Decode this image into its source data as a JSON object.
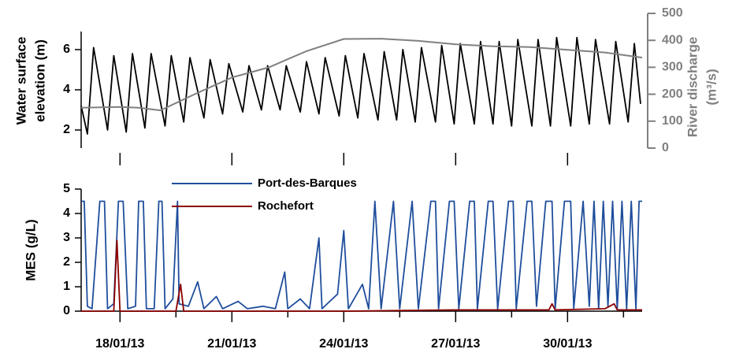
{
  "chart_data": [
    {
      "type": "line",
      "ylabel": [
        "Water surface",
        "elevation (m)"
      ],
      "y2label": [
        "River discharge",
        "(m³/s)"
      ],
      "xlim": [
        "2013-01-16T23:00",
        "2013-02-01T00:00"
      ],
      "ylim": [
        1.1,
        7.8
      ],
      "yticks": [
        2,
        4,
        6
      ],
      "y2lim": [
        0,
        500
      ],
      "y2ticks": [
        0,
        100,
        200,
        300,
        400,
        500
      ],
      "y2color": "#808080",
      "series": [
        {
          "color": "#000000",
          "x": [
            "2013-01-16T23:00",
            "2013-01-17T03:00",
            "2013-01-17T07:00",
            "2013-01-17T16:00",
            "2013-01-17T20:00",
            "2013-01-18T04:00",
            "2013-01-18T08:00",
            "2013-01-18T16:00",
            "2013-01-18T20:00",
            "2013-01-19T05:00",
            "2013-01-19T09:00",
            "2013-01-19T17:00",
            "2013-01-19T21:00",
            "2013-01-20T06:00",
            "2013-01-20T10:00",
            "2013-01-20T18:00",
            "2013-01-20T22:00",
            "2013-01-21T07:00",
            "2013-01-21T11:00",
            "2013-01-21T19:00",
            "2013-01-21T23:00",
            "2013-01-22T07:00",
            "2013-01-22T11:00",
            "2013-01-22T20:00",
            "2013-01-23T00:00",
            "2013-01-23T08:00",
            "2013-01-23T12:00",
            "2013-01-23T21:00",
            "2013-01-24T01:00",
            "2013-01-24T09:00",
            "2013-01-24T13:00",
            "2013-01-24T22:00",
            "2013-01-25T02:00",
            "2013-01-25T10:00",
            "2013-01-25T14:00",
            "2013-01-25T22:00",
            "2013-01-26T02:00",
            "2013-01-26T11:00",
            "2013-01-26T15:00",
            "2013-01-26T23:00",
            "2013-01-27T03:00",
            "2013-01-27T12:00",
            "2013-01-27T16:00",
            "2013-01-28T00:00",
            "2013-01-28T04:00",
            "2013-01-28T12:00",
            "2013-01-28T16:00",
            "2013-01-29T01:00",
            "2013-01-29T05:00",
            "2013-01-29T13:00",
            "2013-01-29T17:00",
            "2013-01-30T02:00",
            "2013-01-30T06:00",
            "2013-01-30T14:00",
            "2013-01-30T18:00",
            "2013-01-31T03:00",
            "2013-01-31T07:00",
            "2013-01-31T15:00",
            "2013-01-31T19:00",
            "2013-01-31T23:00"
          ],
          "values": [
            3.2,
            1.8,
            6.1,
            2.0,
            5.7,
            1.9,
            5.8,
            2.1,
            5.8,
            2.2,
            5.7,
            2.4,
            5.6,
            2.6,
            5.5,
            2.8,
            5.3,
            2.9,
            5.2,
            3.0,
            5.2,
            3.0,
            5.2,
            2.9,
            5.4,
            2.8,
            5.6,
            2.7,
            5.7,
            2.6,
            5.8,
            2.5,
            5.9,
            2.5,
            6.0,
            2.4,
            6.1,
            2.4,
            6.2,
            2.3,
            6.3,
            2.3,
            6.4,
            2.3,
            6.4,
            2.2,
            6.5,
            2.2,
            6.5,
            2.2,
            6.6,
            2.2,
            6.6,
            2.3,
            6.5,
            2.3,
            6.4,
            2.4,
            6.3,
            3.3
          ]
        },
        {
          "color": "#808080",
          "axis": "y2",
          "x": [
            "2013-01-16T23:00",
            "2013-01-18T00:00",
            "2013-01-18T12:00",
            "2013-01-19T02:00",
            "2013-01-20T00:00",
            "2013-01-21T00:00",
            "2013-01-22T00:00",
            "2013-01-22T12:00",
            "2013-01-23T00:00",
            "2013-01-24T00:00",
            "2013-01-25T00:00",
            "2013-01-26T00:00",
            "2013-01-27T00:00",
            "2013-01-28T00:00",
            "2013-01-29T00:00",
            "2013-01-30T00:00",
            "2013-01-31T00:00",
            "2013-02-01T00:00"
          ],
          "values": [
            150,
            153,
            150,
            140,
            200,
            262,
            300,
            330,
            360,
            405,
            406,
            398,
            385,
            378,
            375,
            365,
            355,
            336
          ]
        }
      ]
    },
    {
      "type": "line",
      "ylabel": [
        "MES (g/L)"
      ],
      "xlim": [
        "2013-01-16T23:00",
        "2013-02-01T00:00"
      ],
      "xticks": [
        {
          "value": "2013-01-18T00:00",
          "label": "18/01/13"
        },
        {
          "value": "2013-01-21T00:00",
          "label": "21/01/13"
        },
        {
          "value": "2013-01-24T00:00",
          "label": "24/01/13"
        },
        {
          "value": "2013-01-27T00:00",
          "label": "27/01/13"
        },
        {
          "value": "2013-01-30T00:00",
          "label": "30/01/13"
        }
      ],
      "xminorticks": [
        "2013-01-19T12:00",
        "2013-01-22T12:00",
        "2013-01-25T12:00",
        "2013-01-28T12:00",
        "2013-01-31T12:00"
      ],
      "ylim": [
        0,
        5
      ],
      "yticks": [
        0,
        1,
        2,
        3,
        4,
        5
      ],
      "legend": "upper left",
      "series": [
        {
          "name": "Port-des-Barques",
          "color": "#1f4e9c",
          "x": [
            "2013-01-16T23:00",
            "2013-01-17T01:00",
            "2013-01-17T03:00",
            "2013-01-17T06:00",
            "2013-01-17T11:00",
            "2013-01-17T14:00",
            "2013-01-17T16:00",
            "2013-01-17T20:00",
            "2013-01-17T23:00",
            "2013-01-18T02:00",
            "2013-01-18T05:00",
            "2013-01-18T10:00",
            "2013-01-18T12:00",
            "2013-01-18T15:00",
            "2013-01-18T17:00",
            "2013-01-18T22:00",
            "2013-01-19T01:00",
            "2013-01-19T03:00",
            "2013-01-19T05:00",
            "2013-01-19T10:00",
            "2013-01-19T13:00",
            "2013-01-19T14:00",
            "2013-01-19T20:00",
            "2013-01-20T02:00",
            "2013-01-20T06:00",
            "2013-01-20T14:00",
            "2013-01-20T18:00",
            "2013-01-21T04:00",
            "2013-01-21T10:00",
            "2013-01-21T20:00",
            "2013-01-22T04:00",
            "2013-01-22T10:00",
            "2013-01-22T12:00",
            "2013-01-22T20:00",
            "2013-01-23T02:00",
            "2013-01-23T08:00",
            "2013-01-23T10:00",
            "2013-01-23T20:00",
            "2013-01-24T00:00",
            "2013-01-24T03:00",
            "2013-01-24T12:00",
            "2013-01-24T16:00",
            "2013-01-24T20:00",
            "2013-01-25T00:00",
            "2013-01-25T08:00",
            "2013-01-25T12:00",
            "2013-01-25T20:00",
            "2013-01-26T00:00",
            "2013-01-26T08:00",
            "2013-01-26T11:00",
            "2013-01-26T13:00",
            "2013-01-26T20:00",
            "2013-01-26T23:00",
            "2013-01-27T02:00",
            "2013-01-27T09:00",
            "2013-01-27T12:00",
            "2013-01-27T14:00",
            "2013-01-27T21:00",
            "2013-01-28T00:00",
            "2013-01-28T03:00",
            "2013-01-28T10:00",
            "2013-01-28T13:00",
            "2013-01-28T15:00",
            "2013-01-28T22:00",
            "2013-01-29T01:00",
            "2013-01-29T04:00",
            "2013-01-29T10:00",
            "2013-01-29T14:00",
            "2013-01-29T16:00",
            "2013-01-29T22:00",
            "2013-01-30T02:00",
            "2013-01-30T04:00",
            "2013-01-30T10:00",
            "2013-01-30T14:00",
            "2013-01-30T17:00",
            "2013-01-30T20:00",
            "2013-01-30T23:00",
            "2013-01-31T02:00",
            "2013-01-31T05:00",
            "2013-01-31T08:00",
            "2013-01-31T11:00",
            "2013-01-31T14:00",
            "2013-01-31T17:00",
            "2013-01-31T20:00",
            "2013-01-31T22:00",
            "2013-02-01T00:00"
          ],
          "values": [
            4.5,
            4.5,
            0.2,
            0.1,
            4.5,
            4.5,
            0.1,
            0.3,
            4.5,
            4.5,
            0.1,
            0.2,
            4.5,
            4.5,
            0.1,
            0.1,
            4.5,
            4.5,
            0.1,
            0.5,
            4.5,
            0.3,
            0.2,
            1.2,
            0.1,
            0.6,
            0.1,
            0.4,
            0.1,
            0.2,
            0.1,
            1.6,
            0.1,
            0.5,
            0.1,
            3.0,
            0.1,
            0.7,
            3.3,
            0.1,
            1.1,
            0.1,
            4.5,
            0.1,
            4.5,
            0.1,
            4.5,
            0.1,
            4.5,
            4.5,
            0.1,
            4.5,
            4.5,
            0.1,
            4.5,
            4.5,
            0.1,
            4.5,
            4.5,
            0.1,
            4.5,
            4.5,
            0.1,
            4.5,
            4.5,
            0.2,
            4.5,
            4.5,
            0.1,
            4.5,
            4.5,
            0.1,
            4.5,
            0.2,
            4.5,
            0.1,
            4.5,
            0.2,
            4.5,
            0.1,
            4.5,
            0.1,
            4.5,
            0.1,
            4.5,
            4.5
          ]
        },
        {
          "name": "Rochefort",
          "color": "#8b0000",
          "x": [
            "2013-01-16T23:00",
            "2013-01-17T20:00",
            "2013-01-17T22:00",
            "2013-01-18T00:00",
            "2013-01-19T12:00",
            "2013-01-19T15:00",
            "2013-01-19T17:00",
            "2013-01-20T00:00",
            "2013-01-24T00:00",
            "2013-01-27T00:00",
            "2013-01-29T12:00",
            "2013-01-29T14:00",
            "2013-01-29T16:00",
            "2013-01-31T00:00",
            "2013-01-31T06:00",
            "2013-01-31T08:00",
            "2013-02-01T00:00"
          ],
          "values": [
            0,
            0,
            2.9,
            0,
            0,
            1.1,
            0,
            0,
            0,
            0.05,
            0.05,
            0.3,
            0.05,
            0.1,
            0.3,
            0.05,
            0.05
          ]
        }
      ]
    }
  ]
}
